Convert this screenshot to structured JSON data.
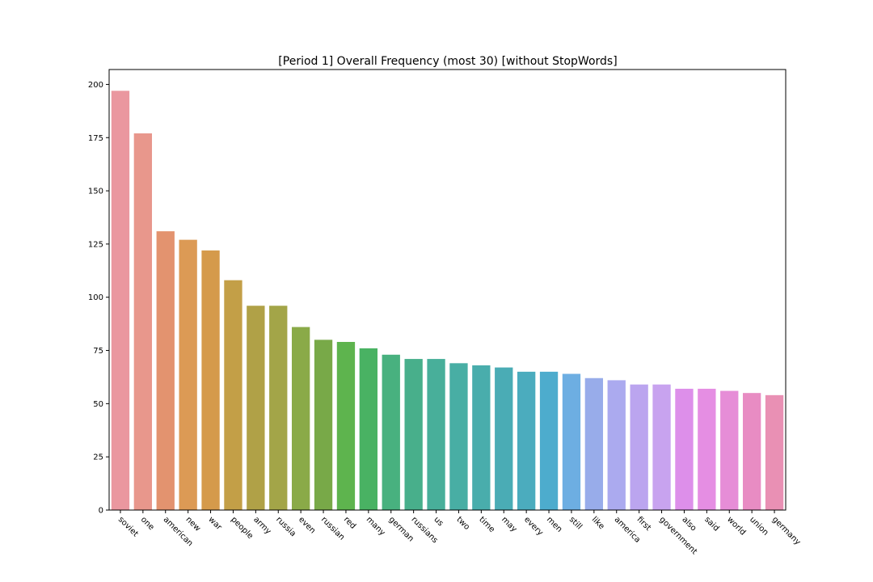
{
  "chart_data": {
    "type": "bar",
    "title": "[Period 1] Overall Frequency (most 30) [without StopWords]",
    "xlabel": "",
    "ylabel": "",
    "ylim": [
      0,
      207
    ],
    "yticks": [
      0,
      25,
      50,
      75,
      100,
      125,
      150,
      175,
      200
    ],
    "grid": false,
    "categories": [
      "soviet",
      "one",
      "american",
      "new",
      "war",
      "people",
      "army",
      "russia",
      "even",
      "russian",
      "red",
      "many",
      "german",
      "russians",
      "us",
      "two",
      "time",
      "may",
      "every",
      "men",
      "still",
      "like",
      "america",
      "first",
      "government",
      "also",
      "said",
      "world",
      "union",
      "germany"
    ],
    "values": [
      197,
      177,
      131,
      127,
      122,
      108,
      96,
      96,
      86,
      80,
      79,
      76,
      73,
      71,
      71,
      69,
      68,
      67,
      65,
      65,
      64,
      62,
      61,
      59,
      59,
      57,
      57,
      56,
      55,
      54
    ],
    "colors": [
      "#ea979f",
      "#e8978c",
      "#e3936f",
      "#dc9a55",
      "#d59a4b",
      "#c39f47",
      "#b0a147",
      "#a3a548",
      "#8aaa48",
      "#78a948",
      "#5eb44e",
      "#49b263",
      "#48b17f",
      "#48af8b",
      "#48af9a",
      "#48aea4",
      "#49adac",
      "#4aacb5",
      "#4bacbe",
      "#4daccd",
      "#6daee2",
      "#98acea",
      "#abaaef",
      "#bba5ef",
      "#c8a3ef",
      "#dd8fea",
      "#e58ee3",
      "#e68dd7",
      "#e88cc3",
      "#e990b4"
    ]
  }
}
